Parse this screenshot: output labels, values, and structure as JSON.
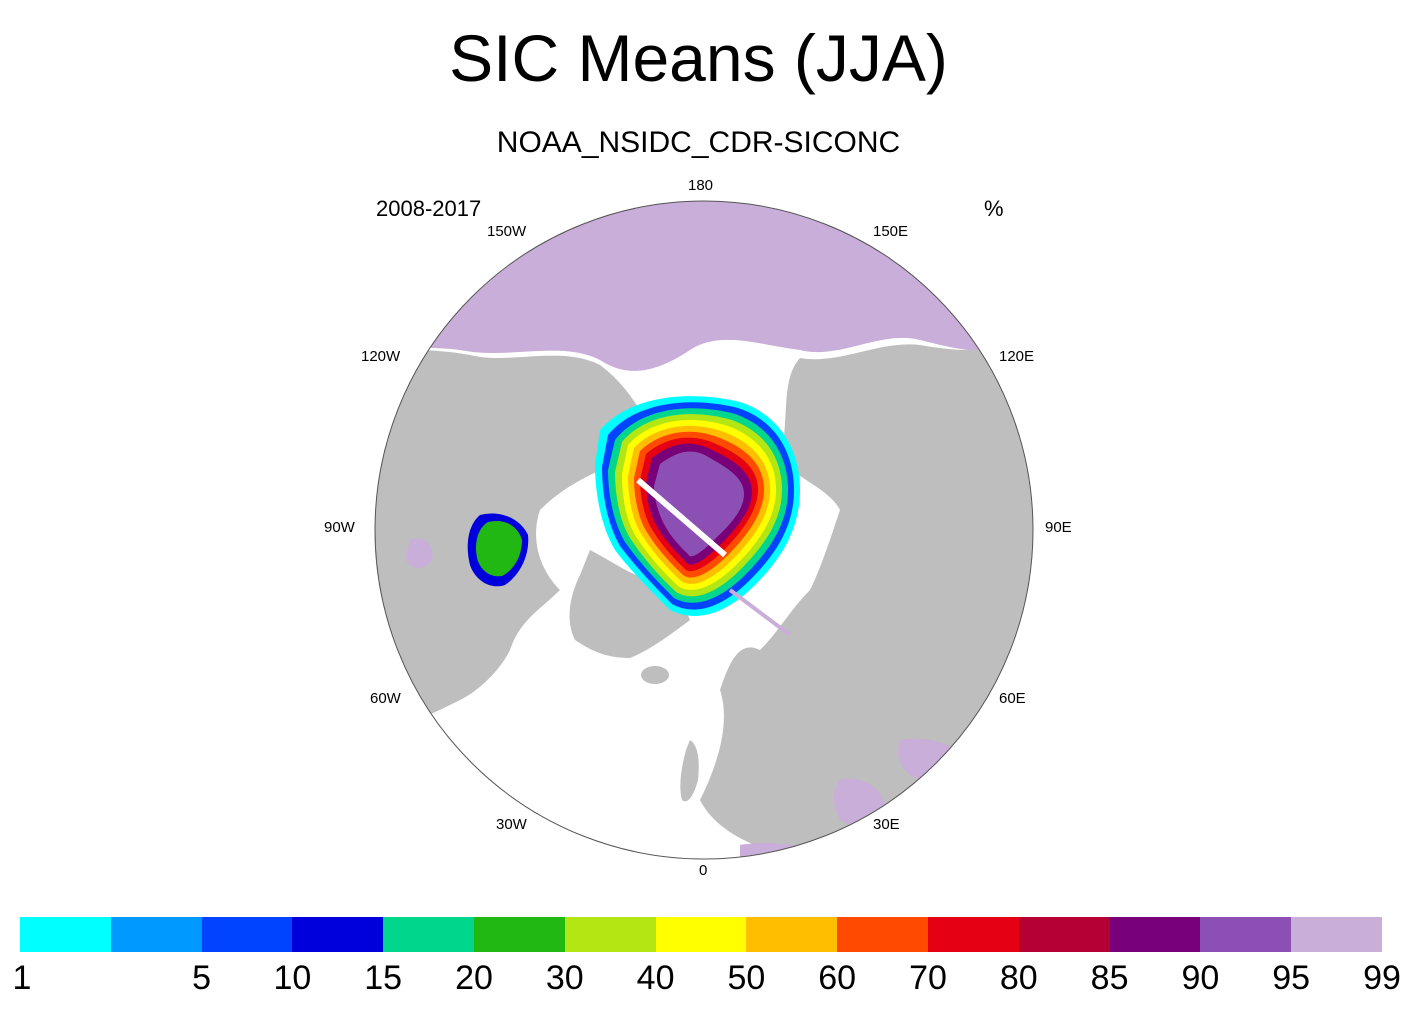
{
  "title": "SIC Means (JJA)",
  "subtitle": "NOAA_NSIDC_CDR-SICONC",
  "period": "2008-2017",
  "units": "%",
  "longitude_labels": {
    "deg180": "180",
    "w150": "150W",
    "e150": "150E",
    "w120": "120W",
    "e120": "120E",
    "w90": "90W",
    "e90": "90E",
    "w60": "60W",
    "e60": "60E",
    "w30": "30W",
    "e30": "30E",
    "deg0": "0"
  },
  "colors": {
    "ocean_open": "#ffffff",
    "land": "#bebebe",
    "missing": "#c8aed8",
    "outline": "#555555"
  },
  "colorbar": {
    "labels": [
      "1",
      "5",
      "10",
      "15",
      "20",
      "30",
      "40",
      "50",
      "60",
      "70",
      "80",
      "85",
      "90",
      "95",
      "99"
    ],
    "colors": [
      "#00ffff",
      "#0099ff",
      "#0044ff",
      "#0000dd",
      "#00d68c",
      "#22b814",
      "#b4e614",
      "#ffff00",
      "#ffbe00",
      "#ff4a00",
      "#e60014",
      "#b40032",
      "#780078",
      "#8c50b4",
      "#c8aed8"
    ]
  }
}
